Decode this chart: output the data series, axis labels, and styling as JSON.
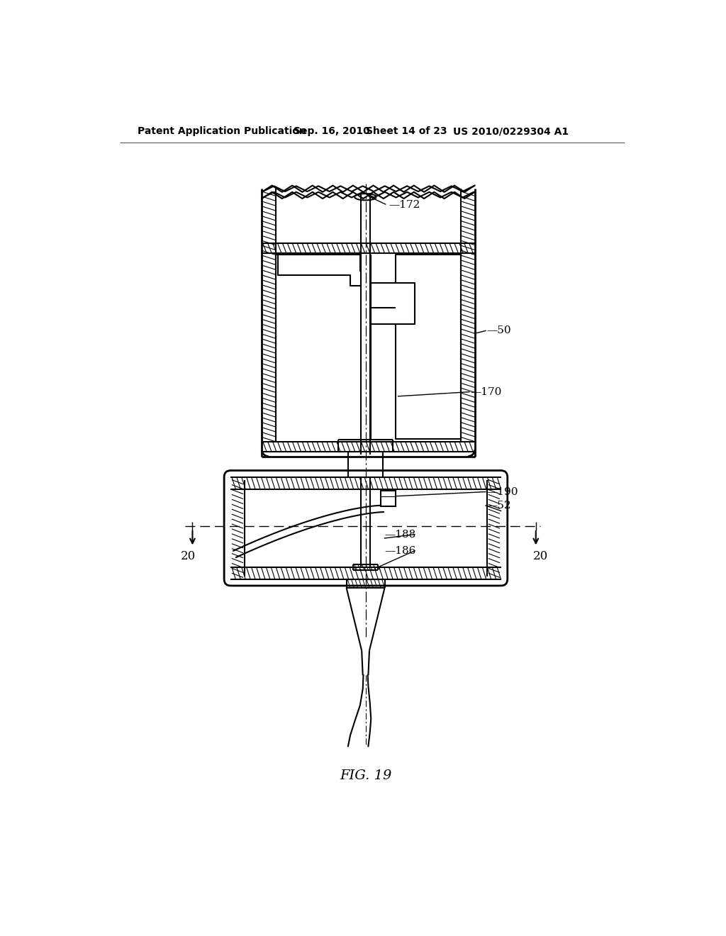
{
  "bg_color": "#ffffff",
  "line_color": "#000000",
  "header_text": "Patent Application Publication",
  "header_date": "Sep. 16, 2010",
  "header_sheet": "Sheet 14 of 23",
  "header_patent": "US 2010/0229304 A1",
  "fig_label": "FIG. 19"
}
